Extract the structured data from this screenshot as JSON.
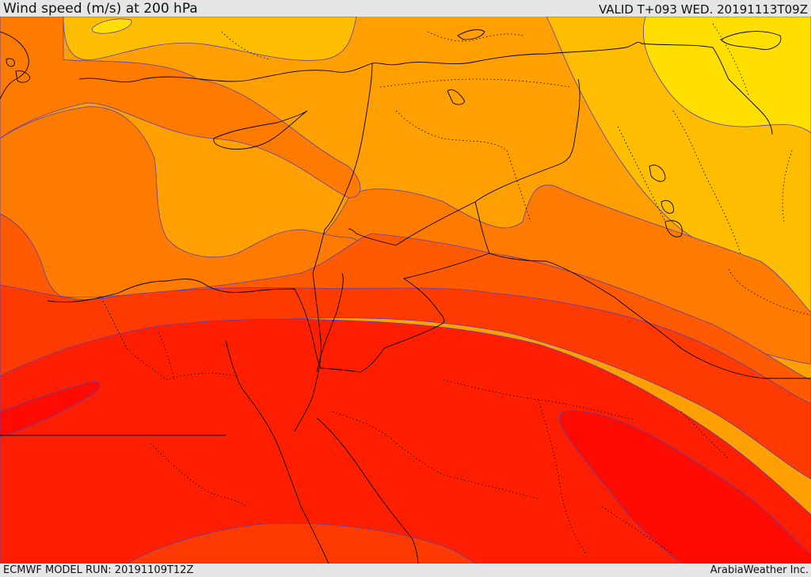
{
  "header": {
    "title": "Wind speed (m/s) at 200 hPa",
    "valid": "VALID T+093 WED. 20191113T09Z"
  },
  "footer": {
    "model_run": "ECMWF MODEL RUN: 20191109T12Z",
    "credit": "ArabiaWeather Inc."
  },
  "colors": {
    "yellow": "#ffde00",
    "light_orange": "#ffbd00",
    "orange": "#ff9f00",
    "dark_orange": "#ff7b00",
    "orange_red": "#ff5a00",
    "red_orange": "#ff3a00",
    "red": "#ff1f00",
    "deep_red": "#ff0a00",
    "contour_line": "#5a3fae",
    "border_line": "#000000"
  }
}
